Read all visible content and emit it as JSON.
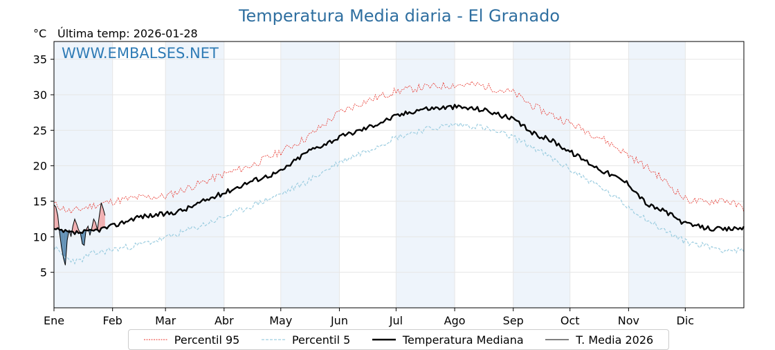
{
  "chart_data": {
    "type": "line",
    "title": "Temperatura Media diaria - El Granado",
    "ylabel": "°C",
    "subtitle": "Última temp: 2026-01-28",
    "watermark": "WWW.EMBALSES.NET",
    "ylim": [
      0,
      37.5
    ],
    "yticks": [
      5,
      10,
      15,
      20,
      25,
      30,
      35
    ],
    "xlim": [
      1,
      366
    ],
    "month_labels": [
      "Ene",
      "Feb",
      "Mar",
      "Abr",
      "May",
      "Jun",
      "Jul",
      "Ago",
      "Sep",
      "Oct",
      "Nov",
      "Dic"
    ],
    "month_start_day": [
      1,
      32,
      60,
      91,
      121,
      152,
      182,
      213,
      244,
      274,
      305,
      335
    ],
    "grid": true,
    "legend_position": "bottom",
    "colors": {
      "p95": "#e8332a",
      "p5": "#9ccde0",
      "median": "#000000",
      "year": "#000000",
      "above": "#f29a9a",
      "below": "#4a7fa8",
      "shade": "#eef4fb",
      "title": "#2f6fa0"
    },
    "series": [
      {
        "key": "p95",
        "name": "Percentil 95",
        "x": [
          1,
          10,
          20,
          32,
          45,
          60,
          75,
          91,
          105,
          121,
          135,
          152,
          165,
          182,
          195,
          213,
          225,
          244,
          255,
          274,
          290,
          305,
          320,
          335,
          345,
          355,
          366
        ],
        "y": [
          14.6,
          13.5,
          14.3,
          15.0,
          15.5,
          15.7,
          17.2,
          18.8,
          20.0,
          22.0,
          24.0,
          27.5,
          29.0,
          30.5,
          31.0,
          31.4,
          31.4,
          30.3,
          28.3,
          26.0,
          24.0,
          21.5,
          18.8,
          15.3,
          14.8,
          15.3,
          14.0
        ]
      },
      {
        "key": "p5",
        "name": "Percentil 5",
        "x": [
          1,
          7,
          14,
          20,
          32,
          45,
          60,
          75,
          91,
          105,
          121,
          135,
          152,
          165,
          182,
          195,
          213,
          225,
          244,
          255,
          274,
          290,
          305,
          320,
          335,
          345,
          355,
          366
        ],
        "y": [
          8.5,
          7.0,
          6.5,
          7.5,
          8.2,
          8.8,
          9.8,
          11.2,
          12.8,
          14.3,
          16.0,
          17.8,
          20.5,
          22.0,
          24.0,
          25.0,
          25.8,
          25.6,
          24.0,
          22.5,
          19.5,
          17.0,
          14.2,
          11.5,
          9.3,
          8.8,
          8.2,
          8.0
        ]
      },
      {
        "key": "median",
        "name": "Temperatura Mediana",
        "x": [
          1,
          10,
          20,
          32,
          45,
          60,
          70,
          80,
          91,
          105,
          121,
          135,
          152,
          165,
          182,
          195,
          213,
          225,
          230,
          244,
          255,
          265,
          274,
          290,
          305,
          315,
          325,
          335,
          345,
          355,
          366
        ],
        "y": [
          11.0,
          10.5,
          10.7,
          11.5,
          12.8,
          13.2,
          13.8,
          15.0,
          16.2,
          17.8,
          19.2,
          22.0,
          24.0,
          25.2,
          27.0,
          28.0,
          28.3,
          28.0,
          27.8,
          26.5,
          24.5,
          23.5,
          22.0,
          19.5,
          17.5,
          14.5,
          13.5,
          11.8,
          11.3,
          11.0,
          11.3
        ]
      },
      {
        "key": "year",
        "name": "T. Media 2026",
        "x": [
          1,
          2,
          3,
          4,
          5,
          6,
          7,
          8,
          9,
          10,
          11,
          12,
          13,
          14,
          15,
          16,
          17,
          18,
          19,
          20,
          21,
          22,
          23,
          24,
          25,
          26,
          27,
          28
        ],
        "y": [
          14.5,
          14.2,
          13.0,
          10.5,
          8.5,
          7.0,
          6.0,
          9.5,
          11.0,
          10.0,
          11.5,
          12.5,
          11.8,
          11.0,
          10.5,
          9.0,
          8.8,
          11.0,
          11.5,
          10.2,
          11.2,
          12.5,
          12.0,
          11.0,
          13.0,
          14.8,
          14.0,
          13.0
        ]
      }
    ]
  }
}
